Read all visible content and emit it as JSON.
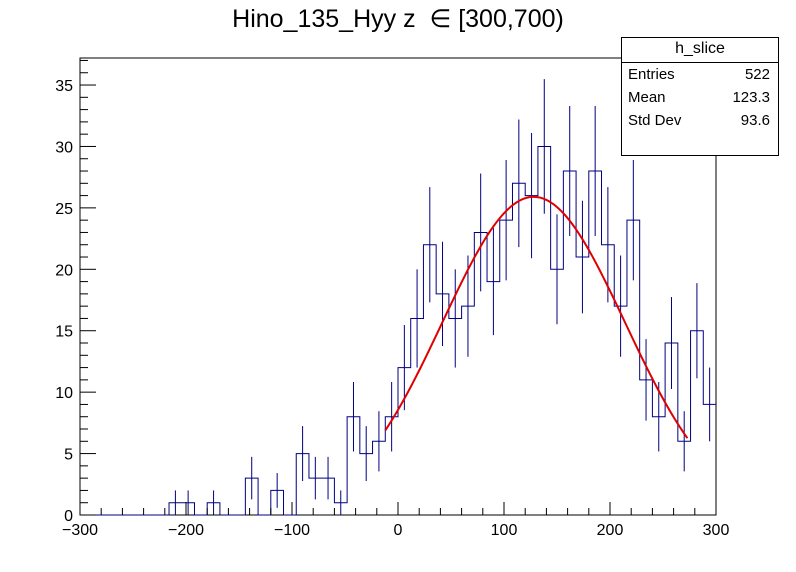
{
  "chart_data": {
    "type": "histogram",
    "title": "Hino_135_Hyy z  ∈ [300,700)",
    "xlabel": "",
    "ylabel": "",
    "xlim": [
      -300,
      300
    ],
    "ylim": [
      0,
      37.2
    ],
    "x_ticks": [
      -300,
      -200,
      -100,
      0,
      100,
      200,
      300
    ],
    "y_ticks": [
      0,
      5,
      10,
      15,
      20,
      25,
      30,
      35
    ],
    "bin_width": 12,
    "bins_x_low": [
      -300,
      -288,
      -276,
      -264,
      -252,
      -240,
      -228,
      -216,
      -204,
      -192,
      -180,
      -168,
      -156,
      -144,
      -132,
      -120,
      -108,
      -96,
      -84,
      -72,
      -60,
      -48,
      -36,
      -24,
      -12,
      0,
      12,
      24,
      36,
      48,
      60,
      72,
      84,
      96,
      108,
      120,
      132,
      144,
      156,
      168,
      180,
      192,
      204,
      216,
      228,
      240,
      252,
      264,
      276,
      288
    ],
    "values": [
      0,
      0,
      0,
      0,
      0,
      0,
      0,
      1,
      1,
      0,
      1,
      0,
      0,
      3,
      0,
      2,
      0,
      5,
      3,
      3,
      1,
      8,
      5,
      6,
      8,
      12,
      16,
      22,
      18,
      16,
      17,
      23,
      19,
      24,
      27,
      26,
      30,
      20,
      28,
      21,
      28,
      22,
      17,
      24,
      11,
      8,
      14,
      6,
      15,
      9
    ],
    "histogram_color": "#000080",
    "fit": {
      "type": "gaus",
      "color": "#e00000",
      "range": [
        -12,
        273
      ],
      "constant": 25.9,
      "mean": 128,
      "sigma": 86
    },
    "legend": {
      "title": "h_slice",
      "placement": "top-right",
      "rows": [
        {
          "label": "Entries",
          "value": "522"
        },
        {
          "label": "Mean",
          "value": "123.3"
        },
        {
          "label": "Std Dev",
          "value": "93.6"
        }
      ]
    }
  }
}
